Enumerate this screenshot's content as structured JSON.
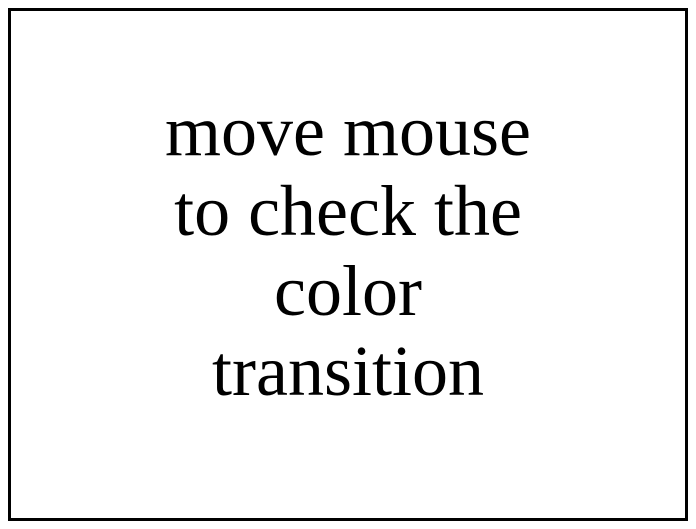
{
  "message": {
    "lines": [
      "move mouse",
      "to check the",
      "color",
      "transition"
    ]
  }
}
